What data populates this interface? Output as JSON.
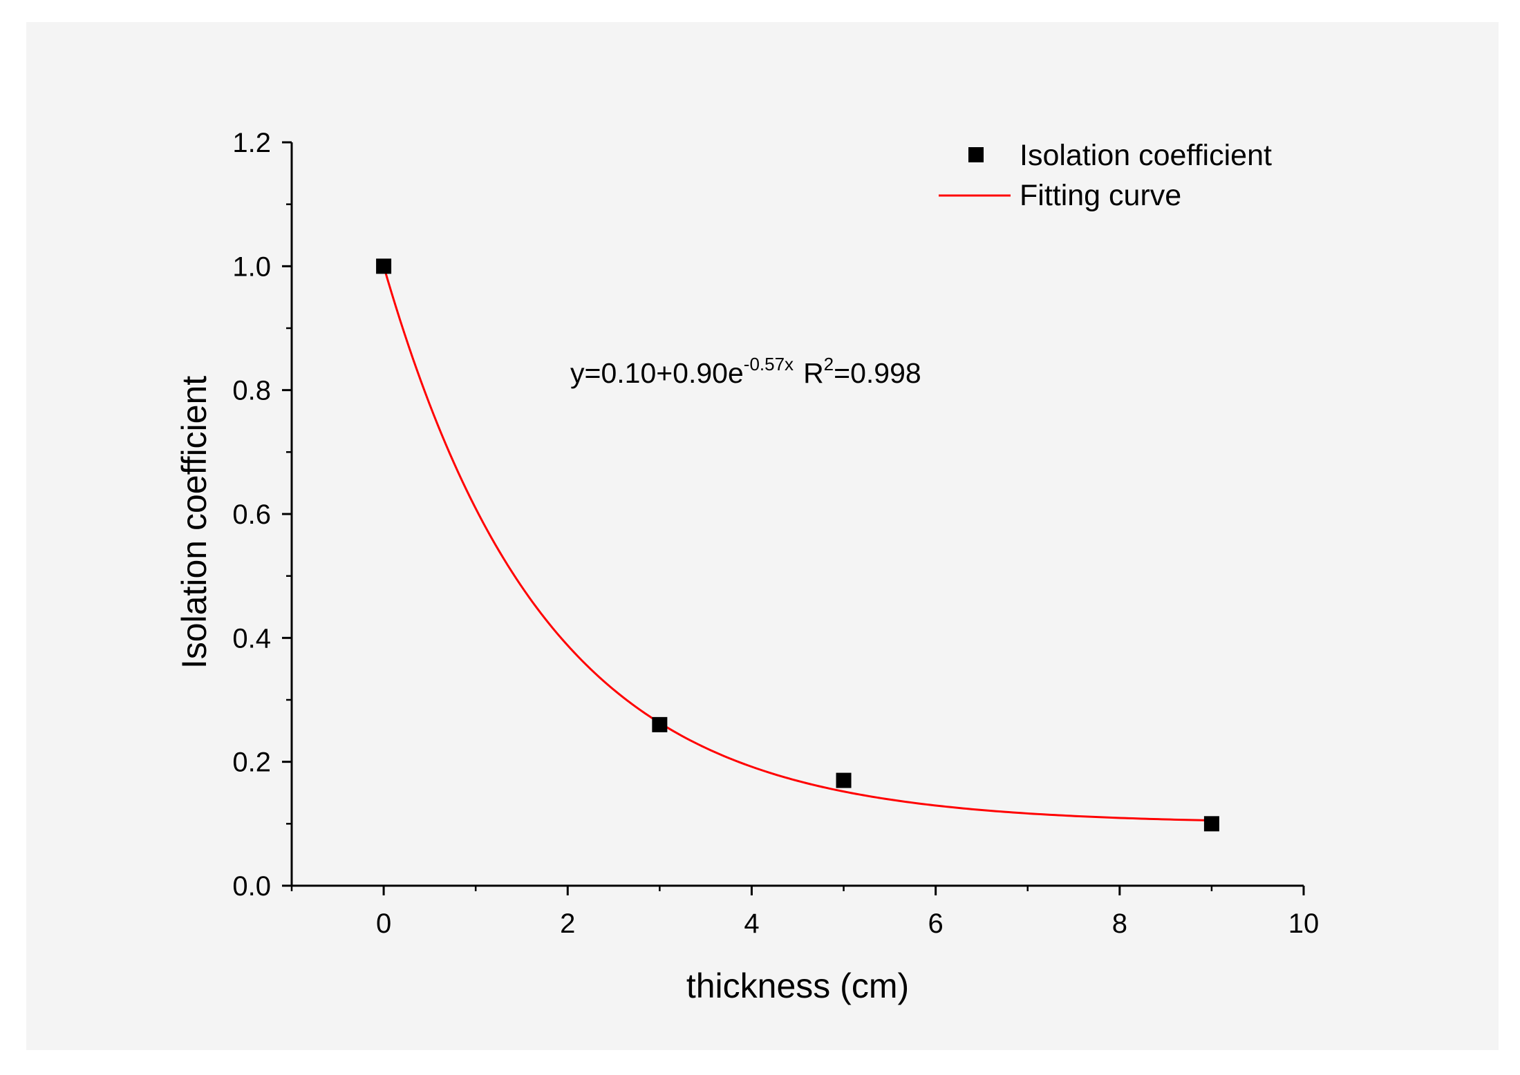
{
  "chart_data": {
    "type": "scatter",
    "title": "",
    "xlabel": "thickness (cm)",
    "ylabel": "Isolation coefficient",
    "xlim": [
      -1,
      10
    ],
    "ylim": [
      0,
      1.2
    ],
    "x_ticks": [
      0,
      2,
      4,
      6,
      8,
      10
    ],
    "y_ticks": [
      0.0,
      0.2,
      0.4,
      0.6,
      0.8,
      1.0,
      1.2
    ],
    "x_tick_labels": [
      "0",
      "2",
      "4",
      "6",
      "8",
      "10"
    ],
    "y_tick_labels": [
      "0.0",
      "0.2",
      "0.4",
      "0.6",
      "0.8",
      "1.0",
      "1.2"
    ],
    "grid": false,
    "legend_position": "top-right",
    "series": [
      {
        "name": "Isolation coefficient",
        "kind": "scatter",
        "color": "#000000",
        "marker": "square",
        "x": [
          0,
          3,
          5,
          9
        ],
        "y": [
          1.0,
          0.26,
          0.17,
          0.1
        ]
      },
      {
        "name": "Fitting curve",
        "kind": "line",
        "color": "#ff0000",
        "fit": {
          "a": 0.1,
          "b": 0.9,
          "k": -0.57
        },
        "x_range": [
          0,
          9
        ]
      }
    ],
    "annotation": {
      "main": "y=0.10+0.90e",
      "exponent": "-0.57x",
      "r_label": "R",
      "r_exponent": "2",
      "r_value": "=0.998"
    }
  }
}
